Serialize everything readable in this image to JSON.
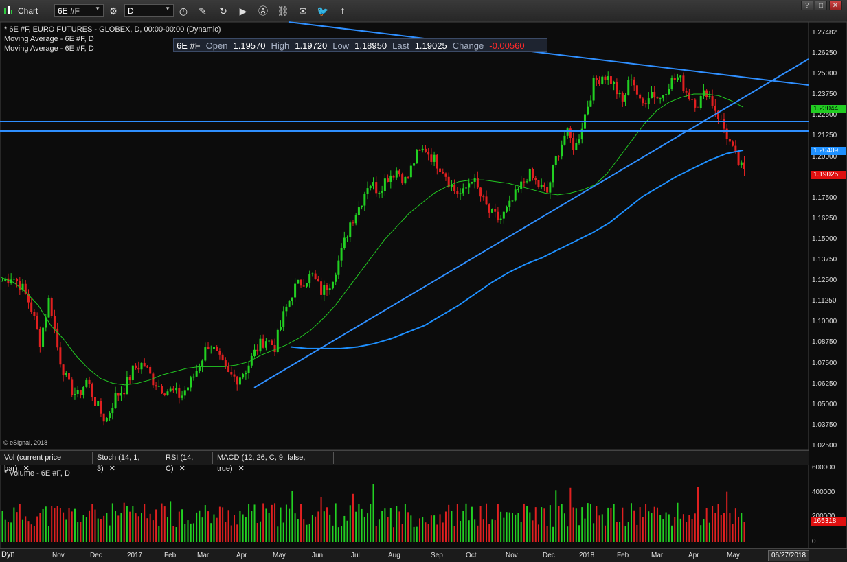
{
  "app": {
    "title": "Chart"
  },
  "toolbar": {
    "symbol": "6E #F",
    "interval": "D"
  },
  "window_buttons": {
    "help": "?",
    "restore": "□",
    "close": "✕"
  },
  "studies": {
    "main": "* 6E #F, EURO FUTURES - GLOBEX, D, 00:00-00:00 (Dynamic)",
    "ma1": "Moving Average - 6E #F, D",
    "ma2": "Moving Average - 6E #F, D"
  },
  "quote": {
    "symbol": "6E #F",
    "open_label": "Open",
    "open": "1.19570",
    "high_label": "High",
    "high": "1.19720",
    "low_label": "Low",
    "low": "1.18950",
    "last_label": "Last",
    "last": "1.19025",
    "change_label": "Change",
    "change": "-0.00560"
  },
  "copyright": "© eSignal, 2018",
  "tabs": [
    {
      "label": "Vol (current price bar)"
    },
    {
      "label": "Stoch (14, 1, 3)"
    },
    {
      "label": "RSI (14, C)"
    },
    {
      "label": "MACD (12, 26, C, 9, false, true)"
    }
  ],
  "volume_label": "* Volume - 6E #F, D",
  "price_axis": [
    "1.27482",
    "1.26250",
    "1.25000",
    "1.23750",
    "1.22500",
    "1.21250",
    "1.20000",
    "1.18750",
    "1.17500",
    "1.16250",
    "1.15000",
    "1.13750",
    "1.12500",
    "1.11250",
    "1.10000",
    "1.08750",
    "1.07500",
    "1.06250",
    "1.05000",
    "1.03750",
    "1.02500"
  ],
  "price_tags": {
    "ma_fast": "1.23044",
    "ma_slow": "1.20409",
    "last": "1.19025"
  },
  "volume_axis": [
    "600000",
    "400000",
    "200000",
    "0"
  ],
  "volume_tag": "165318",
  "time_axis": [
    "Nov",
    "Dec",
    "2017",
    "Feb",
    "Mar",
    "Apr",
    "May",
    "Jun",
    "Jul",
    "Aug",
    "Sep",
    "Oct",
    "Nov",
    "Dec",
    "2018",
    "Feb",
    "Mar",
    "Apr",
    "May"
  ],
  "dyn_label": "Dyn",
  "date_box": "06/27/2018",
  "colors": {
    "up": "#22d022",
    "down": "#e02020",
    "ma_fast": "#22c922",
    "ma_slow": "#1e90ff",
    "trend": "#2f8fff"
  },
  "chart_data": {
    "type": "candlestick",
    "symbol": "6E #F",
    "ylim": [
      1.025,
      1.27482
    ],
    "x": [
      "Nov",
      "Dec",
      "2017",
      "Feb",
      "Mar",
      "Apr",
      "May",
      "Jun",
      "Jul",
      "Aug",
      "Sep",
      "Oct",
      "Nov",
      "Dec",
      "2018",
      "Feb",
      "Mar",
      "Apr",
      "May"
    ],
    "close_path": [
      1.125,
      1.128,
      1.122,
      1.11,
      1.088,
      1.115,
      1.08,
      1.062,
      1.055,
      1.065,
      1.05,
      1.04,
      1.055,
      1.06,
      1.072,
      1.075,
      1.065,
      1.06,
      1.058,
      1.055,
      1.063,
      1.075,
      1.088,
      1.078,
      1.068,
      1.066,
      1.072,
      1.083,
      1.09,
      1.085,
      1.105,
      1.12,
      1.125,
      1.128,
      1.118,
      1.125,
      1.14,
      1.16,
      1.17,
      1.185,
      1.18,
      1.188,
      1.192,
      1.185,
      1.2,
      1.205,
      1.198,
      1.192,
      1.18,
      1.177,
      1.188,
      1.175,
      1.165,
      1.162,
      1.17,
      1.18,
      1.19,
      1.183,
      1.178,
      1.2,
      1.215,
      1.205,
      1.225,
      1.245,
      1.25,
      1.245,
      1.232,
      1.25,
      1.23,
      1.24,
      1.235,
      1.245,
      1.248,
      1.238,
      1.232,
      1.24,
      1.228,
      1.215,
      1.2,
      1.19
    ],
    "ma_fast": [
      1.127,
      1.124,
      1.118,
      1.11,
      1.098,
      1.09,
      1.08,
      1.072,
      1.066,
      1.063,
      1.062,
      1.063,
      1.065,
      1.068,
      1.07,
      1.072,
      1.073,
      1.073,
      1.073,
      1.074,
      1.076,
      1.08,
      1.083,
      1.086,
      1.09,
      1.095,
      1.102,
      1.11,
      1.12,
      1.13,
      1.14,
      1.15,
      1.158,
      1.166,
      1.172,
      1.178,
      1.182,
      1.185,
      1.186,
      1.186,
      1.185,
      1.184,
      1.182,
      1.18,
      1.178,
      1.177,
      1.178,
      1.18,
      1.183,
      1.19,
      1.2,
      1.21,
      1.22,
      1.228,
      1.233,
      1.236,
      1.238,
      1.238,
      1.237,
      1.234,
      1.23
    ],
    "ma_slow": [
      1.085,
      1.084,
      1.084,
      1.084,
      1.085,
      1.087,
      1.09,
      1.094,
      1.098,
      1.104,
      1.11,
      1.117,
      1.124,
      1.13,
      1.135,
      1.139,
      1.144,
      1.149,
      1.154,
      1.16,
      1.168,
      1.176,
      1.182,
      1.188,
      1.193,
      1.198,
      1.202,
      1.204
    ],
    "trendlines": [
      {
        "name": "resistance",
        "from": [
          1.285,
          "2016"
        ],
        "to": [
          1.245,
          "Jun 2018"
        ]
      },
      {
        "name": "support",
        "from": [
          1.061,
          "Apr 2017"
        ],
        "to": [
          1.263,
          "Jun 2018"
        ]
      },
      {
        "name": "horizontal_1",
        "y": 1.2245
      },
      {
        "name": "horizontal_2",
        "y": 1.2185
      }
    ],
    "volume_ylim": [
      0,
      600000
    ],
    "volume_last": 165318
  }
}
